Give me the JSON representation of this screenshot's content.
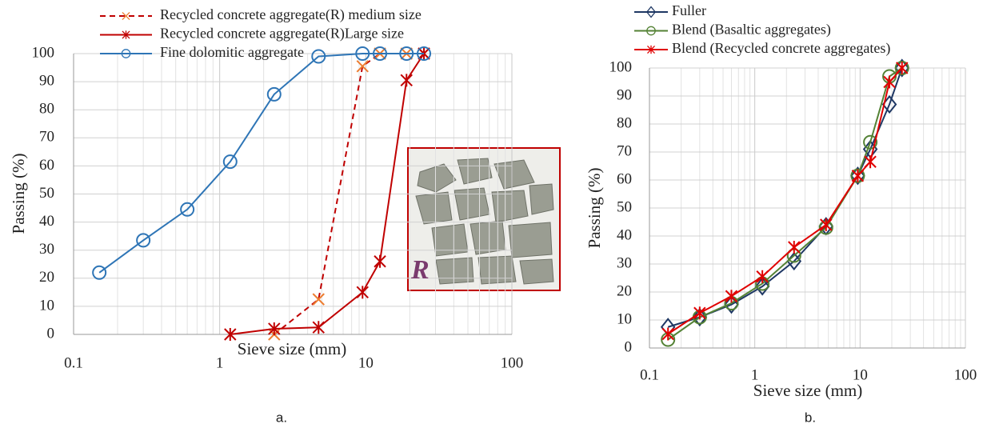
{
  "chart_data": [
    {
      "type": "line",
      "x_label": "Sieve size (mm)",
      "y_label": "Passing (%)",
      "caption": "a.",
      "inset_label": "R",
      "xscale": "log",
      "xlim": [
        0.1,
        100
      ],
      "xticks": [
        0.1,
        1,
        10,
        100
      ],
      "ylim": [
        0,
        100
      ],
      "yticks": [
        0,
        10,
        20,
        30,
        40,
        50,
        60,
        70,
        80,
        90,
        100
      ],
      "grid": true,
      "minor_grid": true,
      "legend": "top",
      "series": [
        {
          "name": "Recycled concrete aggregate(R) medium size",
          "color": "#ed7d31",
          "line_color": "#c00000",
          "dash": true,
          "marker": "x",
          "x": [
            2.36,
            4.75,
            9.5,
            12.5,
            19,
            25
          ],
          "values": [
            0,
            12.5,
            95.5,
            100,
            100,
            100
          ]
        },
        {
          "name": "Recycled concrete aggregate(R)Large size",
          "color": "#c00000",
          "dash": false,
          "marker": "asterisk",
          "x": [
            1.18,
            2.36,
            4.75,
            9.5,
            12.5,
            19,
            25
          ],
          "values": [
            0,
            2,
            2.5,
            15,
            26,
            90.5,
            100
          ]
        },
        {
          "name": "Fine dolomitic aggregate",
          "color": "#2e75b6",
          "dash": false,
          "marker": "circle",
          "x": [
            0.15,
            0.3,
            0.6,
            1.18,
            2.36,
            4.75,
            9.5,
            12.5,
            19,
            25
          ],
          "values": [
            22,
            33.5,
            44.5,
            61.5,
            85.5,
            99,
            100,
            100,
            100,
            100
          ]
        }
      ]
    },
    {
      "type": "line",
      "x_label": "Sieve size (mm)",
      "y_label": "Passing (%)",
      "caption": "b.",
      "xscale": "log",
      "xlim": [
        0.1,
        100
      ],
      "xticks": [
        0.1,
        1,
        10,
        100
      ],
      "ylim": [
        0,
        100
      ],
      "yticks": [
        0,
        10,
        20,
        30,
        40,
        50,
        60,
        70,
        80,
        90,
        100
      ],
      "grid": true,
      "minor_grid": true,
      "legend": "top",
      "series": [
        {
          "name": "Fuller",
          "color": "#1f3864",
          "dash": false,
          "marker": "diamond",
          "x": [
            0.15,
            0.3,
            0.6,
            1.18,
            2.36,
            4.75,
            9.5,
            12.5,
            19,
            25
          ],
          "values": [
            7.5,
            11,
            15.5,
            22,
            31,
            43.5,
            61.5,
            71,
            87,
            100
          ]
        },
        {
          "name": "Blend (Basaltic aggregates)",
          "color": "#548235",
          "dash": false,
          "marker": "circle",
          "x": [
            0.15,
            0.3,
            0.6,
            1.18,
            2.36,
            4.75,
            9.5,
            12.5,
            19,
            25
          ],
          "values": [
            3,
            11,
            16,
            23,
            33,
            43,
            61.5,
            73.5,
            97,
            100
          ]
        },
        {
          "name": "Blend (Recycled concrete aggregates)",
          "color": "#e00000",
          "dash": false,
          "marker": "asterisk",
          "x": [
            0.15,
            0.3,
            0.6,
            1.18,
            2.36,
            4.75,
            9.5,
            12.5,
            19,
            25
          ],
          "values": [
            5,
            12.5,
            18.5,
            25.5,
            36,
            44,
            61.5,
            66.5,
            95,
            100
          ]
        }
      ]
    }
  ]
}
